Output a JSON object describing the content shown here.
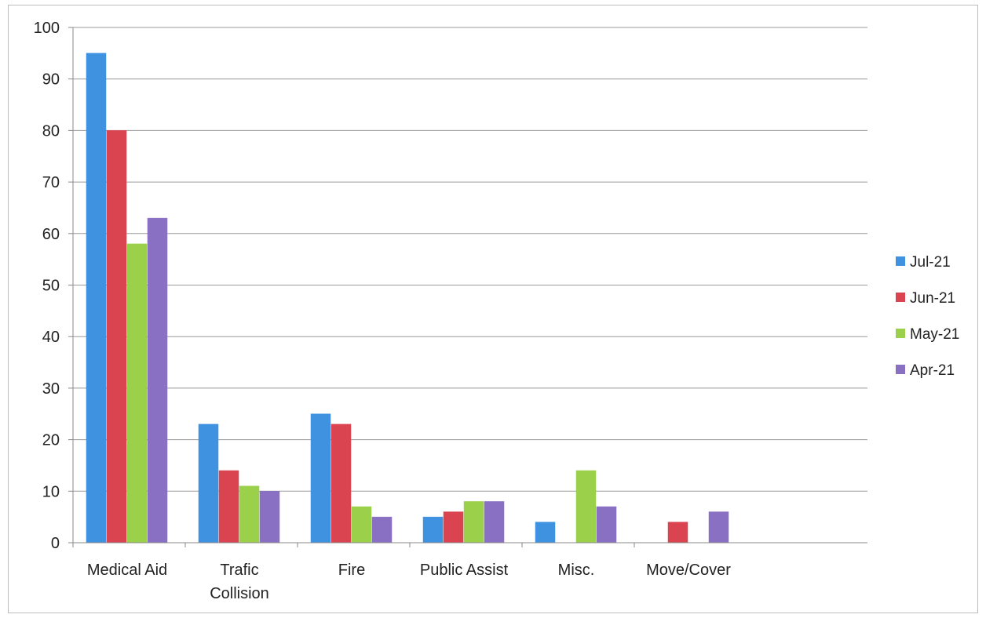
{
  "chart_data": {
    "type": "bar",
    "title": "",
    "xlabel": "",
    "ylabel": "",
    "categories": [
      [
        "Medical Aid"
      ],
      [
        "Trafic",
        "Collision"
      ],
      [
        "Fire"
      ],
      [
        "Public Assist"
      ],
      [
        "Misc."
      ],
      [
        "Move/Cover"
      ]
    ],
    "series": [
      {
        "name": "Jul-21",
        "color": "#3e92e0",
        "values": [
          95,
          23,
          25,
          5,
          4,
          0
        ]
      },
      {
        "name": "Jun-21",
        "color": "#d94450",
        "values": [
          80,
          14,
          23,
          6,
          0,
          4
        ]
      },
      {
        "name": "May-21",
        "color": "#9bd14a",
        "values": [
          58,
          11,
          7,
          8,
          14,
          0
        ]
      },
      {
        "name": "Apr-21",
        "color": "#8a70c2",
        "values": [
          63,
          10,
          5,
          8,
          7,
          6
        ]
      }
    ],
    "ylim": [
      0,
      100
    ],
    "yticks": [
      0,
      10,
      20,
      30,
      40,
      50,
      60,
      70,
      80,
      90,
      100
    ],
    "grid": true,
    "legend": "right"
  }
}
